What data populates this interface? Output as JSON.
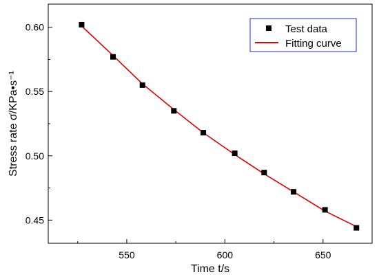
{
  "chart_data": {
    "type": "scatter",
    "xlabel": "Time t/s",
    "ylabel": "Stress rate σ̇/KPa•s⁻¹",
    "xlim": [
      510,
      675
    ],
    "ylim": [
      0.432,
      0.618
    ],
    "x_ticks": [
      550,
      600,
      650
    ],
    "y_ticks": [
      0.45,
      0.5,
      0.55,
      0.6
    ],
    "x_tick_labels": [
      "550",
      "600",
      "650"
    ],
    "y_tick_labels": [
      "0.45",
      "0.50",
      "0.55",
      "0.60"
    ],
    "grid": false,
    "legend_position": "top-right",
    "series": [
      {
        "name": "Test data",
        "kind": "scatter",
        "marker": "square",
        "color": "#000000",
        "x": [
          527,
          543,
          558,
          574,
          589,
          605,
          620,
          635,
          651,
          667
        ],
        "y": [
          0.602,
          0.577,
          0.555,
          0.535,
          0.518,
          0.502,
          0.487,
          0.472,
          0.458,
          0.444
        ]
      },
      {
        "name": "Fitting curve",
        "kind": "line",
        "color": "#e00000",
        "x": [
          527,
          543,
          558,
          574,
          589,
          605,
          620,
          635,
          651,
          667
        ],
        "y": [
          0.601,
          0.578,
          0.556,
          0.536,
          0.518,
          0.501,
          0.486,
          0.472,
          0.457,
          0.445
        ]
      }
    ]
  }
}
